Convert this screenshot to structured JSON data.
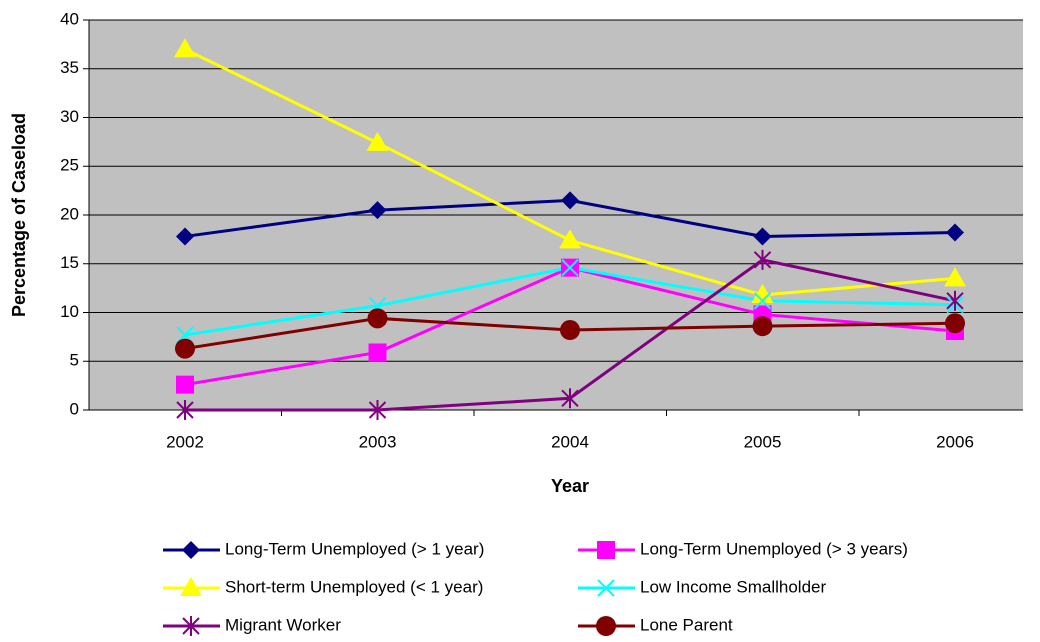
{
  "chart_data": {
    "type": "line",
    "y_label": "Percentage of Caseload",
    "x_label": "Year",
    "categories": [
      "2002",
      "2003",
      "2004",
      "2005",
      "2006"
    ],
    "ylim": [
      0,
      40
    ],
    "yticks": [
      0,
      5,
      10,
      15,
      20,
      25,
      30,
      35,
      40
    ],
    "grid": true,
    "legend": "bottom",
    "series": [
      {
        "name": "Long-Term Unemployed (> 1 year)",
        "color": "#000080",
        "marker": "diamond",
        "values": [
          17.8,
          20.5,
          21.5,
          17.8,
          18.2
        ]
      },
      {
        "name": "Long-Term Unemployed (> 3 years)",
        "color": "#ff00ff",
        "marker": "square",
        "values": [
          2.6,
          5.9,
          14.6,
          9.8,
          8.1
        ]
      },
      {
        "name": "Short-term Unemployed (< 1 year)",
        "color": "#ffff00",
        "marker": "triangle",
        "values": [
          37,
          27.4,
          17.4,
          11.8,
          13.5
        ]
      },
      {
        "name": "Low  Income Smallholder",
        "color": "#00ffff",
        "marker": "x",
        "values": [
          7.7,
          10.7,
          14.6,
          11.2,
          10.8
        ]
      },
      {
        "name": "Migrant Worker",
        "color": "#800080",
        "marker": "star",
        "values": [
          0,
          0,
          1.2,
          15.4,
          11.2
        ]
      },
      {
        "name": "Lone Parent",
        "color": "#800000",
        "marker": "circle",
        "values": [
          6.3,
          9.4,
          8.2,
          8.6,
          8.9
        ]
      }
    ]
  }
}
